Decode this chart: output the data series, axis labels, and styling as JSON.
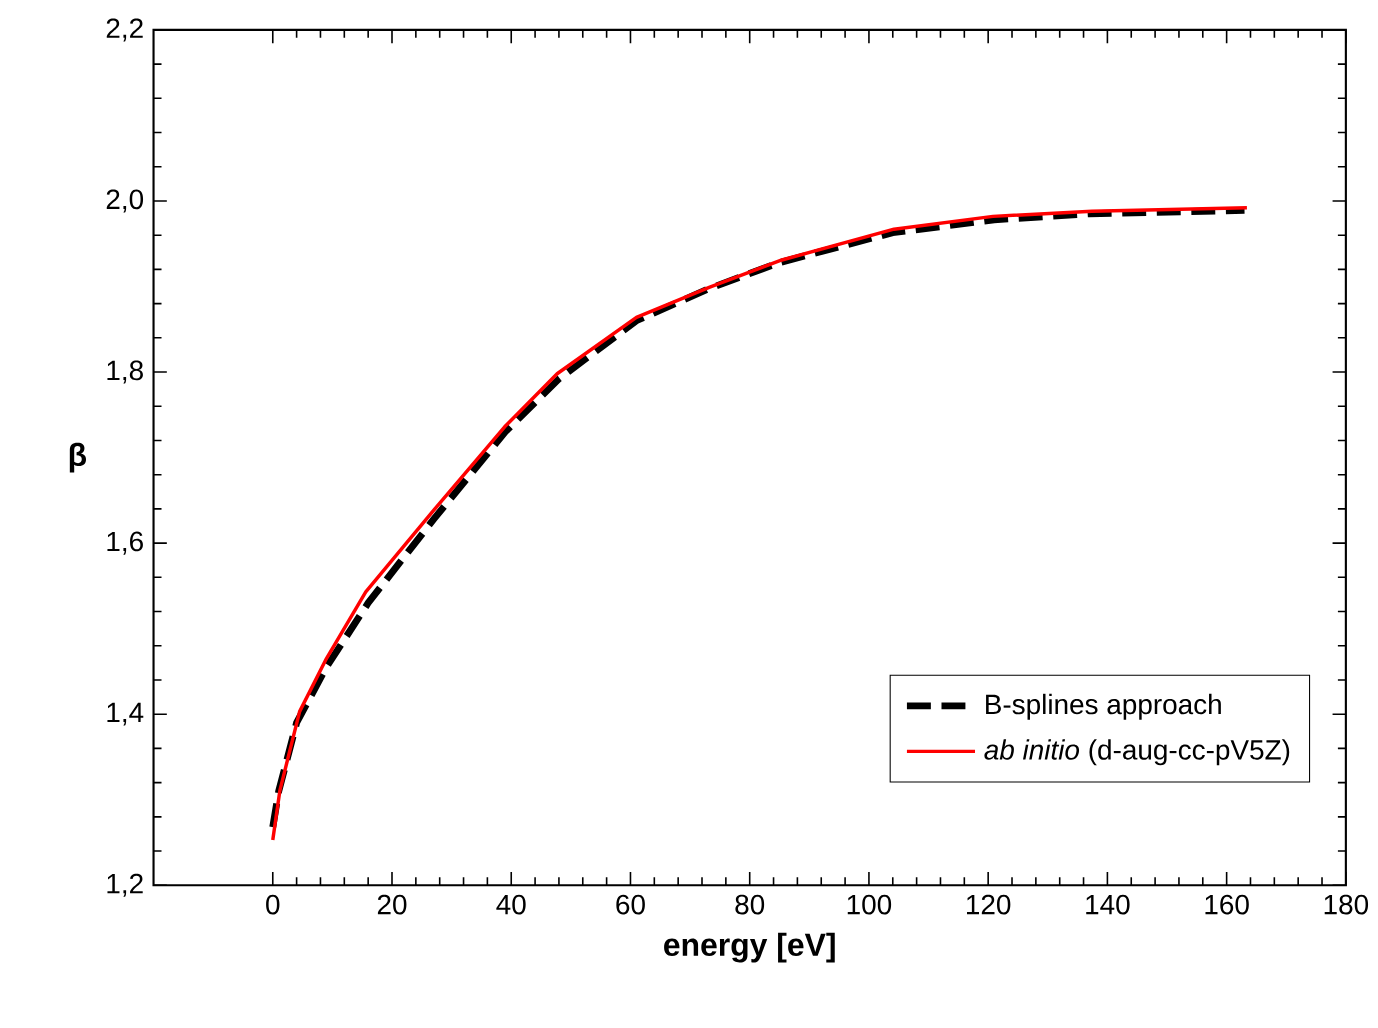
{
  "chart_data": {
    "type": "line",
    "xlabel": "energy [eV]",
    "ylabel": "β",
    "xlim": [
      -20,
      180
    ],
    "ylim": [
      1.2,
      2.2
    ],
    "xticks": [
      0,
      20,
      40,
      60,
      80,
      100,
      120,
      140,
      160,
      180
    ],
    "yticks": [
      {
        "value": 1.2,
        "label": "1,2"
      },
      {
        "value": 1.4,
        "label": "1,4"
      },
      {
        "value": 1.6,
        "label": "1,6"
      },
      {
        "value": 1.8,
        "label": "1,8"
      },
      {
        "value": 2.0,
        "label": "2,0"
      },
      {
        "value": 2.2,
        "label": "2,2"
      }
    ],
    "legend": "bottom right",
    "marker": "none",
    "series": [
      {
        "name": "B-splines approach",
        "color": "#000000",
        "line_style": "dashed",
        "x": [
          0,
          1,
          4,
          9,
          16,
          27,
          39,
          48,
          61,
          73,
          85,
          104,
          121,
          137,
          163
        ],
        "values": [
          1.268,
          1.31,
          1.39,
          1.455,
          1.53,
          1.628,
          1.73,
          1.792,
          1.86,
          1.897,
          1.928,
          1.963,
          1.978,
          1.985,
          1.989
        ]
      },
      {
        "name": "*ab initio* (d-aug-cc-pV5Z)",
        "color": "#ff0000",
        "line_style": "solid",
        "x": [
          0,
          1.2,
          4.5,
          9,
          15.6,
          26.7,
          38.9,
          47.7,
          61,
          73.2,
          85.4,
          104.2,
          120.8,
          137.4,
          163.4
        ],
        "values": [
          1.253,
          1.311,
          1.403,
          1.465,
          1.543,
          1.636,
          1.736,
          1.798,
          1.864,
          1.899,
          1.931,
          1.967,
          1.982,
          1.988,
          1.992
        ]
      }
    ]
  }
}
